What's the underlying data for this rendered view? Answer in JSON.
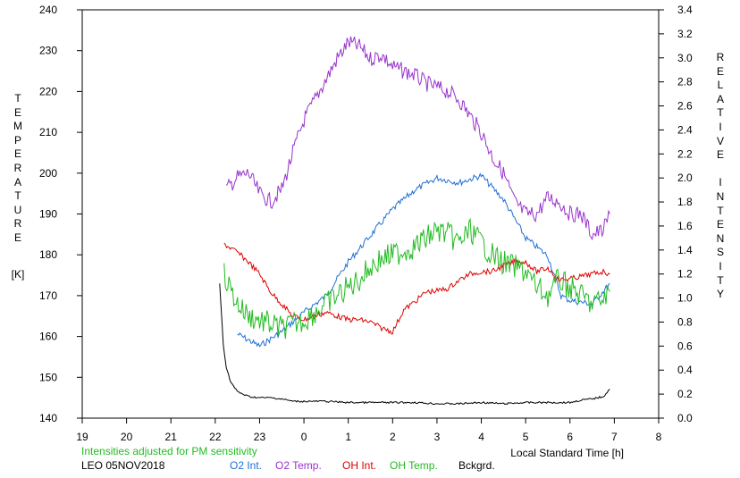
{
  "chart_data": {
    "type": "line",
    "xlabel": "Local Standard Time [h]",
    "ylabel_left": "TEMPERATURE",
    "ylabel_left_unit": "[K]",
    "ylabel_right": "RELATIVE INTENSITY",
    "x_ticks": [
      "19",
      "20",
      "21",
      "22",
      "23",
      "0",
      "1",
      "2",
      "3",
      "4",
      "5",
      "6",
      "7",
      "8"
    ],
    "y_left_ticks": [
      "140",
      "150",
      "160",
      "170",
      "180",
      "190",
      "200",
      "210",
      "220",
      "230",
      "240"
    ],
    "y_right_ticks": [
      "0.0",
      "0.2",
      "0.4",
      "0.6",
      "0.8",
      "1.0",
      "1.2",
      "1.4",
      "1.6",
      "1.8",
      "2.0",
      "2.2",
      "2.4",
      "2.6",
      "2.8",
      "3.0",
      "3.2",
      "3.4"
    ],
    "xlim": [
      19,
      32
    ],
    "ylim_left": [
      140,
      240
    ],
    "ylim_right": [
      0,
      3.4
    ],
    "note": "Intensities adjusted for PM sensitivity",
    "station": "LEO 05NOV2018",
    "legend_placement": "bottom",
    "grid": false,
    "series": [
      {
        "name": "O2 Int.",
        "axis": "right",
        "color": "#1f6fd6",
        "x": [
          22.5,
          23.0,
          23.5,
          24.0,
          24.5,
          25.0,
          25.5,
          26.0,
          26.5,
          27.0,
          27.5,
          28.0,
          28.5,
          29.0,
          29.5,
          29.8,
          30.0,
          30.5,
          30.9
        ],
        "y": [
          0.7,
          0.6,
          0.72,
          0.88,
          1.02,
          1.3,
          1.52,
          1.74,
          1.9,
          2.0,
          1.96,
          2.02,
          1.82,
          1.5,
          1.35,
          1.02,
          0.98,
          0.95,
          1.12
        ]
      },
      {
        "name": "O2 Temp.",
        "axis": "left",
        "color": "#9933cc",
        "x": [
          22.25,
          22.5,
          22.75,
          23.0,
          23.25,
          23.5,
          23.75,
          24.0,
          24.25,
          24.5,
          24.75,
          25.0,
          25.25,
          25.5,
          25.75,
          26.0,
          26.25,
          26.5,
          26.75,
          27.0,
          27.25,
          27.5,
          27.75,
          28.0,
          28.25,
          28.5,
          28.75,
          29.0,
          29.25,
          29.5,
          29.75,
          30.0,
          30.25,
          30.5,
          30.75,
          30.9
        ],
        "y": [
          196,
          199,
          200,
          195,
          193,
          196,
          205,
          213,
          218,
          223,
          228,
          232,
          231,
          228,
          229,
          226,
          225,
          224,
          222,
          221,
          220,
          218,
          214,
          210,
          204,
          200,
          193,
          190,
          190,
          194,
          193,
          190,
          190,
          185,
          186,
          190
        ]
      },
      {
        "name": "OH Int.",
        "axis": "right",
        "color": "#dd0000",
        "x": [
          22.2,
          22.5,
          22.75,
          23.0,
          23.25,
          23.5,
          23.75,
          24.0,
          24.25,
          24.5,
          24.75,
          25.0,
          25.25,
          25.5,
          25.75,
          26.0,
          26.25,
          26.5,
          26.75,
          27.0,
          27.25,
          27.5,
          27.75,
          28.0,
          28.25,
          28.5,
          28.75,
          29.0,
          29.25,
          29.5,
          29.75,
          30.0,
          30.25,
          30.5,
          30.75,
          30.9
        ],
        "y": [
          1.45,
          1.38,
          1.3,
          1.2,
          1.05,
          0.95,
          0.85,
          0.82,
          0.85,
          0.88,
          0.85,
          0.82,
          0.82,
          0.8,
          0.75,
          0.72,
          0.9,
          0.97,
          1.05,
          1.06,
          1.08,
          1.15,
          1.2,
          1.22,
          1.22,
          1.27,
          1.3,
          1.3,
          1.22,
          1.25,
          1.15,
          1.16,
          1.18,
          1.2,
          1.22,
          1.2
        ]
      },
      {
        "name": "OH Temp.",
        "axis": "left",
        "color": "#22bb22",
        "x": [
          22.2,
          22.5,
          22.75,
          23.0,
          23.25,
          23.5,
          23.75,
          24.0,
          24.25,
          24.5,
          24.75,
          25.0,
          25.25,
          25.5,
          25.75,
          26.0,
          26.25,
          26.5,
          26.75,
          27.0,
          27.25,
          27.5,
          27.75,
          28.0,
          28.25,
          28.5,
          28.75,
          29.0,
          29.25,
          29.5,
          29.75,
          30.0,
          30.25,
          30.5,
          30.75,
          30.9
        ],
        "y": [
          175,
          168,
          165,
          164,
          163,
          162,
          163,
          164,
          166,
          168,
          170,
          172,
          174,
          177,
          179,
          180,
          181,
          182,
          184,
          186,
          185,
          183,
          186,
          183,
          180,
          178,
          177,
          176,
          172,
          170,
          174,
          172,
          170,
          168,
          169,
          171
        ]
      },
      {
        "name": "Bckgrd.",
        "axis": "right",
        "color": "#000000",
        "x": [
          22.1,
          22.18,
          22.25,
          22.35,
          22.5,
          22.75,
          23.0,
          23.25,
          23.5,
          23.75,
          24.0,
          24.5,
          25.0,
          25.5,
          26.0,
          26.5,
          27.0,
          27.5,
          28.0,
          28.5,
          29.0,
          29.5,
          30.0,
          30.25,
          30.5,
          30.75,
          30.9
        ],
        "y": [
          1.12,
          0.62,
          0.42,
          0.3,
          0.22,
          0.18,
          0.17,
          0.17,
          0.16,
          0.14,
          0.14,
          0.14,
          0.13,
          0.13,
          0.13,
          0.13,
          0.12,
          0.12,
          0.13,
          0.12,
          0.13,
          0.13,
          0.13,
          0.15,
          0.16,
          0.18,
          0.24
        ]
      }
    ]
  }
}
